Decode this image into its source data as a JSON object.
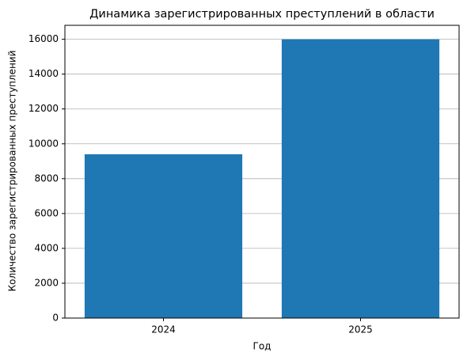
{
  "chart_data": {
    "type": "bar",
    "title": "Динамика зарегистрированных преступлений в области",
    "x_label": "Год",
    "y_label": "Количество зарегистрированных преступлений",
    "categories": [
      "2024",
      "2025"
    ],
    "values": [
      9400,
      16000
    ],
    "color": "#1f77b4",
    "ylim": [
      0,
      16800
    ],
    "yticks": [
      0,
      2000,
      4000,
      6000,
      8000,
      10000,
      12000,
      14000,
      16000
    ],
    "grid": true
  }
}
